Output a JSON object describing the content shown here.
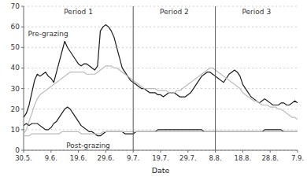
{
  "chart_data": {
    "type": "line",
    "x_label": "Date",
    "categories": [
      "30.5.",
      null,
      null,
      null,
      null,
      null,
      null,
      null,
      null,
      null,
      "9.6.",
      null,
      null,
      null,
      null,
      null,
      null,
      null,
      null,
      null,
      "19.6.",
      null,
      null,
      null,
      null,
      null,
      null,
      null,
      null,
      null,
      "29.6.",
      null,
      null,
      null,
      null,
      null,
      null,
      null,
      null,
      null,
      "9.7.",
      null,
      null,
      null,
      null,
      null,
      null,
      null,
      null,
      null,
      "19.7.",
      null,
      null,
      null,
      null,
      null,
      null,
      null,
      null,
      null,
      "29.7.",
      null,
      null,
      null,
      null,
      null,
      null,
      null,
      null,
      null,
      "8.8.",
      null,
      null,
      null,
      null,
      null,
      null,
      null,
      null,
      null,
      "18.8.",
      null,
      null,
      null,
      null,
      null,
      null,
      null,
      null,
      null,
      "28.8.",
      null,
      null,
      null,
      null,
      null,
      null,
      null,
      null,
      null,
      "7.9."
    ],
    "series": [
      {
        "color": "#1a1a1a",
        "values": [
          16,
          18,
          22,
          28,
          34,
          37,
          36,
          37,
          38,
          36,
          35,
          33,
          38,
          43,
          48,
          53,
          50,
          48,
          46,
          44,
          42,
          41,
          42,
          42,
          41,
          40,
          39,
          41,
          58,
          60,
          61,
          60,
          58,
          55,
          50,
          45,
          40,
          38,
          36,
          34,
          33,
          32,
          31,
          30,
          30,
          29,
          28,
          28,
          28,
          27,
          27,
          26,
          27,
          28,
          28,
          28,
          27,
          26,
          26,
          26,
          27,
          28,
          30,
          32,
          34,
          36,
          37,
          38,
          38,
          37,
          36,
          35,
          34,
          33,
          35,
          37,
          38,
          39,
          38,
          36,
          32,
          30,
          28,
          26,
          25,
          24,
          23,
          24,
          25,
          24,
          23,
          22,
          22,
          22,
          23,
          23,
          22,
          22,
          23,
          24,
          23
        ]
      },
      {
        "color": "#bbbbbb",
        "values": [
          8,
          10,
          14,
          18,
          22,
          25,
          27,
          28,
          29,
          30,
          31,
          32,
          33,
          34,
          35,
          36,
          37,
          38,
          38,
          38,
          38,
          38,
          38,
          37,
          37,
          37,
          37,
          38,
          39,
          40,
          41,
          41,
          41,
          40,
          40,
          39,
          38,
          37,
          36,
          35,
          34,
          33,
          32,
          31,
          30,
          30,
          30,
          30,
          30,
          29,
          29,
          29,
          29,
          28,
          28,
          28,
          29,
          29,
          30,
          31,
          32,
          33,
          34,
          35,
          36,
          37,
          38,
          39,
          40,
          40,
          39,
          38,
          37,
          36,
          35,
          34,
          33,
          32,
          31,
          30,
          28,
          27,
          26,
          25,
          24,
          24,
          23,
          22,
          22,
          22,
          21,
          21,
          21,
          20,
          20,
          19,
          18,
          17,
          16,
          16,
          15
        ]
      },
      {
        "color": "#1a1a1a",
        "values": [
          12,
          13,
          12,
          13,
          13,
          13,
          12,
          11,
          10,
          10,
          11,
          13,
          14,
          16,
          18,
          20,
          21,
          20,
          18,
          16,
          14,
          12,
          11,
          10,
          9,
          9,
          8,
          7,
          7,
          8,
          9,
          9,
          9,
          9,
          9,
          9,
          9,
          8,
          8,
          8,
          8,
          9,
          9,
          9,
          9,
          9,
          9,
          9,
          9,
          10,
          10,
          10,
          10,
          10,
          10,
          10,
          10,
          10,
          10,
          10,
          10,
          10,
          10,
          10,
          10,
          10,
          9,
          9,
          9,
          9,
          9,
          9,
          9,
          9,
          9,
          9,
          9,
          9,
          9,
          9,
          9,
          9,
          9,
          9,
          9,
          9,
          9,
          9,
          10,
          10,
          10,
          10,
          10,
          10,
          10,
          9,
          9,
          9,
          9,
          9,
          9
        ]
      },
      {
        "color": "#bbbbbb",
        "values": [
          7,
          7,
          7,
          8,
          8,
          8,
          8,
          8,
          8,
          8,
          8,
          8,
          8,
          8,
          9,
          9,
          9,
          9,
          9,
          9,
          9,
          8,
          8,
          8,
          8,
          8,
          8,
          8,
          8,
          9,
          9,
          9,
          9,
          9,
          9,
          9,
          9,
          9,
          9,
          9,
          9,
          9,
          9,
          9,
          9,
          9,
          9,
          9,
          9,
          9,
          9,
          9,
          9,
          9,
          9,
          9,
          9,
          9,
          9,
          9,
          9,
          9,
          9,
          9,
          9,
          9,
          9,
          9,
          9,
          9,
          9,
          9,
          9,
          9,
          9,
          9,
          9,
          9,
          9,
          9,
          9,
          9,
          9,
          9,
          9,
          9,
          9,
          9,
          9,
          9,
          9,
          9,
          9,
          9,
          9,
          9,
          9,
          9,
          9,
          9,
          9
        ]
      }
    ],
    "ylim": [
      0,
      70
    ],
    "yticks": [
      0,
      10,
      20,
      30,
      40,
      50,
      60,
      70
    ],
    "grid": true,
    "period_boundaries": [
      "9.7.",
      "8.8."
    ],
    "period_labels": [
      "Period 1",
      "Period 2",
      "Period 3"
    ],
    "annotations": [
      "Pre-grazing",
      "Post-grazing"
    ]
  }
}
